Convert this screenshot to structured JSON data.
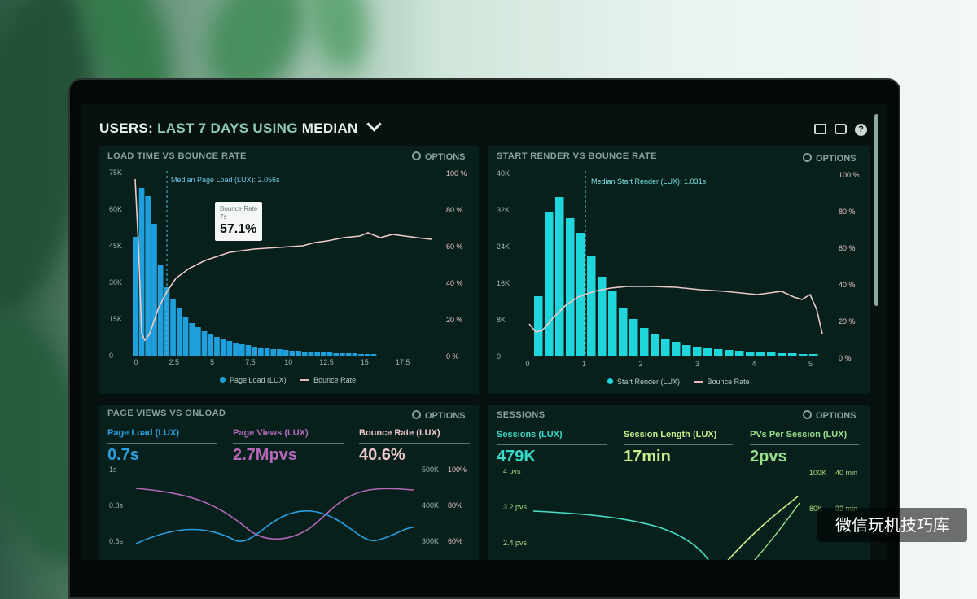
{
  "header": {
    "part1": "USERS:",
    "part2": "LAST 7 DAYS",
    "part3": "USING",
    "part4": "MEDIAN",
    "icons": [
      "monitor-icon",
      "share-icon",
      "help-icon"
    ],
    "help_glyph": "?"
  },
  "options_label": "OPTIONS",
  "panels": {
    "load_time": {
      "title": "LOAD TIME VS BOUNCE RATE",
      "median_label": "Median Page Load (LUX): 2.056s",
      "tooltip": {
        "title": "Bounce Rate",
        "sub": "7s",
        "value": "57.1%"
      },
      "legend": [
        "Page Load (LUX)",
        "Bounce Rate"
      ],
      "y_left_ticks": [
        "75K",
        "60K",
        "45K",
        "30K",
        "15K",
        "0"
      ],
      "y_right_ticks": [
        "100 %",
        "80 %",
        "60 %",
        "40 %",
        "20 %",
        "0 %"
      ],
      "x_ticks": [
        "0",
        "2.5",
        "5",
        "7.5",
        "10",
        "12.5",
        "15",
        "17.5"
      ]
    },
    "start_render": {
      "title": "START RENDER VS BOUNCE RATE",
      "median_label": "Median Start Render (LUX): 1.031s",
      "legend": [
        "Start Render (LUX)",
        "Bounce Rate"
      ],
      "y_left_ticks": [
        "40K",
        "32K",
        "24K",
        "16K",
        "8K",
        "0"
      ],
      "y_right_ticks": [
        "100 %",
        "80 %",
        "60 %",
        "40 %",
        "20 %",
        "0 %"
      ],
      "x_ticks": [
        "0",
        "1",
        "2",
        "3",
        "4",
        "5"
      ]
    },
    "page_views": {
      "title": "PAGE VIEWS VS ONLOAD",
      "stats": [
        {
          "label": "Page Load (LUX)",
          "value": "0.7s",
          "color": "#2aa0e0"
        },
        {
          "label": "Page Views (LUX)",
          "value": "2.7Mpvs",
          "color": "#b569b8"
        },
        {
          "label": "Bounce Rate (LUX)",
          "value": "40.6%",
          "color": "#f0c8cc"
        }
      ],
      "y_left_ticks": [
        "1s",
        "0.8s",
        "0.6s"
      ],
      "y_right_a": [
        "500K",
        "400K",
        "300K"
      ],
      "y_right_b": [
        "100%",
        "80%",
        "60%"
      ]
    },
    "sessions": {
      "title": "SESSIONS",
      "stats": [
        {
          "label": "Sessions (LUX)",
          "value": "479K",
          "color": "#38d9c8"
        },
        {
          "label": "Session Length (LUX)",
          "value": "17min",
          "color": "#c6ee8c"
        },
        {
          "label": "PVs Per Session (LUX)",
          "value": "2pvs",
          "color": "#9ae08c"
        }
      ],
      "y_left_ticks": [
        "4 pvs",
        "3.2 pvs",
        "2.4 pvs"
      ],
      "y_right_a": [
        "100K",
        "80K"
      ],
      "y_right_b": [
        "40 min",
        "32 min"
      ]
    }
  },
  "watermark": "微信玩机技巧库"
}
